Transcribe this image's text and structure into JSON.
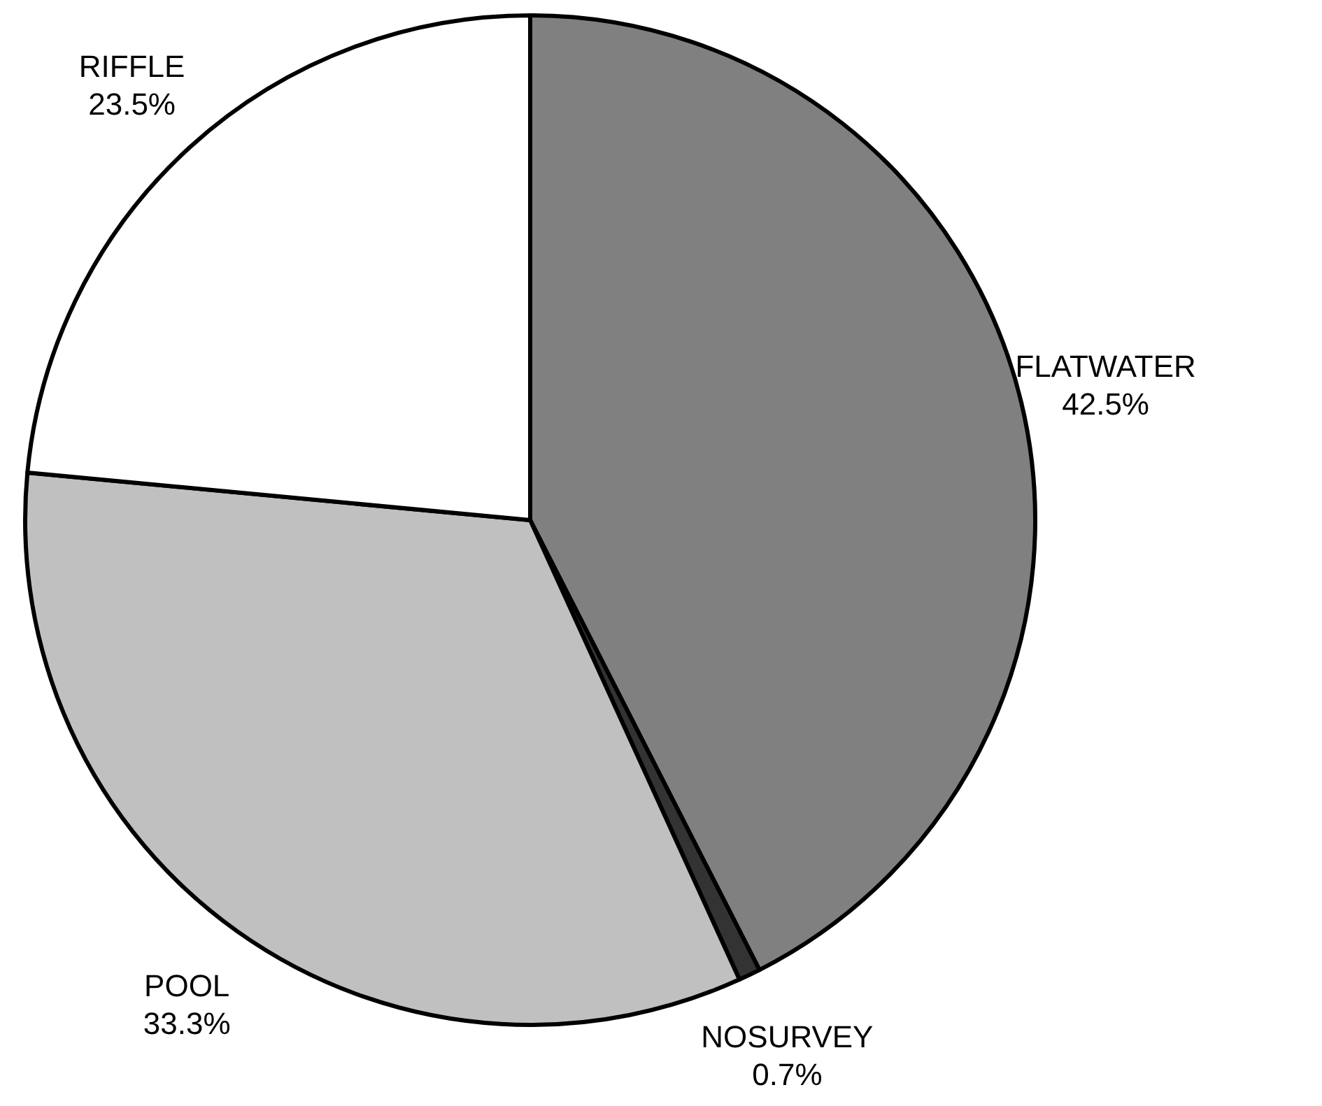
{
  "chart_data": {
    "type": "pie",
    "categories": [
      "FLATWATER",
      "NOSURVEY",
      "POOL",
      "RIFFLE"
    ],
    "values": [
      42.5,
      0.7,
      33.3,
      23.5
    ],
    "colors": [
      "#808080",
      "#333333",
      "#c0c0c0",
      "#ffffff"
    ],
    "value_labels": [
      "42.5%",
      "0.7%",
      "33.3%",
      "23.5%"
    ]
  }
}
